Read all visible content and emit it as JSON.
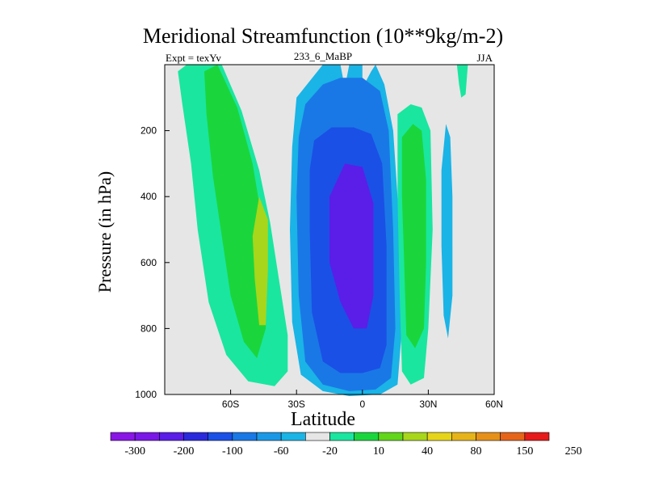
{
  "chart_data": {
    "type": "contour",
    "title": "Meridional Streamfunction (10**9kg/m-2)",
    "left_label": "Expt = texYv",
    "center_label": "233_6_MaBP",
    "right_label": "JJA",
    "xlabel": "Latitude",
    "ylabel": "Pressure (in hPa)",
    "xlim": [
      -90,
      60
    ],
    "ylim": [
      1000,
      0
    ],
    "y_reversed": true,
    "x_ticks": [
      {
        "value": -60,
        "label": "60S"
      },
      {
        "value": -30,
        "label": "30S"
      },
      {
        "value": 0,
        "label": "0"
      },
      {
        "value": 30,
        "label": "30N"
      },
      {
        "value": 60,
        "label": "60N"
      }
    ],
    "y_ticks": [
      {
        "value": 200,
        "label": "200"
      },
      {
        "value": 400,
        "label": "400"
      },
      {
        "value": 600,
        "label": "600"
      },
      {
        "value": 800,
        "label": "800"
      },
      {
        "value": 1000,
        "label": "1000"
      }
    ],
    "background_color": "#e6e6e6",
    "colorbar": {
      "colors": [
        "#8a16e6",
        "#7a18e8",
        "#5a1ee8",
        "#2a2adc",
        "#1a50e6",
        "#1a78e6",
        "#1a98e6",
        "#1ab4e6",
        "#e6e6e6",
        "#1ae6a0",
        "#1ad63c",
        "#62d61a",
        "#a8d61a",
        "#e6d41a",
        "#e6b41a",
        "#e6901a",
        "#e6641a",
        "#e61a1a"
      ],
      "labels": [
        "-300",
        "-200",
        "-100",
        "-60",
        "-20",
        "10",
        "40",
        "80",
        "150",
        "250"
      ]
    },
    "regions": [
      {
        "name": "southern-positive-cell",
        "level": "10",
        "points": [
          [
            -80,
            0
          ],
          [
            -64,
            0
          ],
          [
            -55,
            140
          ],
          [
            -47,
            320
          ],
          [
            -42,
            480
          ],
          [
            -38,
            650
          ],
          [
            -34,
            820
          ],
          [
            -34,
            930
          ],
          [
            -40,
            975
          ],
          [
            -52,
            960
          ],
          [
            -62,
            880
          ],
          [
            -70,
            720
          ],
          [
            -75,
            500
          ],
          [
            -78,
            300
          ],
          [
            -82,
            120
          ],
          [
            -84,
            20
          ]
        ]
      },
      {
        "name": "southern-positive-cell",
        "level": "40",
        "points": [
          [
            -66,
            0
          ],
          [
            -57,
            130
          ],
          [
            -50,
            300
          ],
          [
            -46,
            460
          ],
          [
            -44,
            640
          ],
          [
            -44,
            800
          ],
          [
            -48,
            890
          ],
          [
            -54,
            840
          ],
          [
            -60,
            700
          ],
          [
            -64,
            520
          ],
          [
            -68,
            340
          ],
          [
            -71,
            150
          ],
          [
            -72,
            20
          ]
        ]
      },
      {
        "name": "southern-positive-cell",
        "level": "80",
        "points": [
          [
            -47,
            400
          ],
          [
            -43,
            470
          ],
          [
            -43,
            620
          ],
          [
            -44,
            790
          ],
          [
            -47,
            790
          ],
          [
            -49,
            650
          ],
          [
            -50,
            520
          ]
        ]
      },
      {
        "name": "equatorial-negative-cell",
        "level": "-20",
        "points": [
          [
            -30,
            100
          ],
          [
            -18,
            0
          ],
          [
            -10,
            0
          ],
          [
            -8,
            70
          ],
          [
            -6,
            0
          ],
          [
            0,
            0
          ],
          [
            0,
            70
          ],
          [
            4,
            20
          ],
          [
            6,
            0
          ],
          [
            10,
            60
          ],
          [
            14,
            200
          ],
          [
            17,
            500
          ],
          [
            18,
            800
          ],
          [
            16,
            970
          ],
          [
            8,
            1000
          ],
          [
            -6,
            1005
          ],
          [
            -18,
            990
          ],
          [
            -28,
            940
          ],
          [
            -32,
            780
          ],
          [
            -33,
            500
          ],
          [
            -32,
            250
          ]
        ]
      },
      {
        "name": "equatorial-negative-cell",
        "level": "-60",
        "points": [
          [
            -26,
            120
          ],
          [
            -18,
            60
          ],
          [
            -10,
            40
          ],
          [
            0,
            40
          ],
          [
            8,
            80
          ],
          [
            12,
            200
          ],
          [
            14,
            500
          ],
          [
            15,
            800
          ],
          [
            13,
            950
          ],
          [
            6,
            985
          ],
          [
            -6,
            990
          ],
          [
            -18,
            970
          ],
          [
            -26,
            900
          ],
          [
            -29,
            700
          ],
          [
            -30,
            400
          ],
          [
            -29,
            220
          ]
        ]
      },
      {
        "name": "equatorial-negative-cell",
        "level": "-100",
        "points": [
          [
            -22,
            230
          ],
          [
            -14,
            190
          ],
          [
            -4,
            190
          ],
          [
            4,
            210
          ],
          [
            9,
            300
          ],
          [
            11,
            550
          ],
          [
            11,
            850
          ],
          [
            8,
            920
          ],
          [
            0,
            935
          ],
          [
            -10,
            935
          ],
          [
            -18,
            900
          ],
          [
            -23,
            750
          ],
          [
            -24,
            500
          ],
          [
            -24,
            320
          ]
        ]
      },
      {
        "name": "equatorial-negative-cell",
        "level": "-200",
        "points": [
          [
            -15,
            400
          ],
          [
            -8,
            300
          ],
          [
            0,
            310
          ],
          [
            5,
            420
          ],
          [
            5,
            700
          ],
          [
            2,
            800
          ],
          [
            -4,
            800
          ],
          [
            -10,
            720
          ],
          [
            -15,
            600
          ]
        ]
      },
      {
        "name": "northern-positive-cell",
        "level": "10",
        "points": [
          [
            16,
            150
          ],
          [
            22,
            120
          ],
          [
            27,
            130
          ],
          [
            31,
            200
          ],
          [
            32,
            500
          ],
          [
            30,
            800
          ],
          [
            28,
            950
          ],
          [
            22,
            970
          ],
          [
            18,
            930
          ],
          [
            17,
            700
          ],
          [
            16,
            400
          ]
        ]
      },
      {
        "name": "northern-positive-cell",
        "level": "40",
        "points": [
          [
            18,
            220
          ],
          [
            23,
            180
          ],
          [
            27,
            200
          ],
          [
            29,
            350
          ],
          [
            29,
            600
          ],
          [
            28,
            800
          ],
          [
            24,
            860
          ],
          [
            20,
            820
          ],
          [
            19,
            600
          ],
          [
            18,
            400
          ]
        ]
      },
      {
        "name": "northern-negative-cell",
        "level": "-20",
        "points": [
          [
            38,
            180
          ],
          [
            40,
            220
          ],
          [
            41,
            400
          ],
          [
            41,
            700
          ],
          [
            39,
            830
          ],
          [
            37,
            760
          ],
          [
            36,
            550
          ],
          [
            36,
            320
          ]
        ]
      },
      {
        "name": "northern-positive-cell",
        "level": "10",
        "points": [
          [
            43,
            0
          ],
          [
            48,
            0
          ],
          [
            47,
            90
          ],
          [
            45,
            100
          ],
          [
            44,
            60
          ]
        ]
      }
    ]
  }
}
